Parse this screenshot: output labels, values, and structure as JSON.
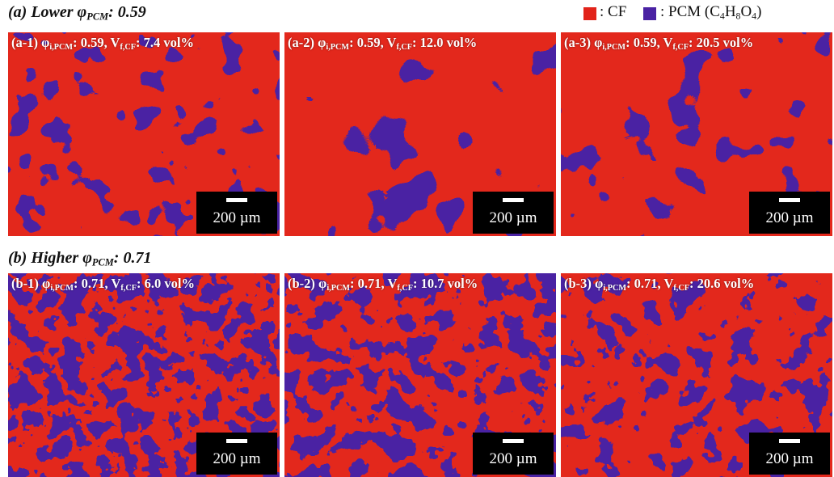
{
  "legend": [
    {
      "color": "#e2231a",
      "label": [
        ": CF"
      ]
    },
    {
      "color": "#4a22a3",
      "label": [
        ": PCM (C",
        "4",
        "H",
        "8",
        "O",
        "4",
        ")"
      ]
    }
  ],
  "sections": [
    {
      "title": [
        "(a) Lower φ",
        "PCM",
        ": 0.59"
      ],
      "panels": [
        {
          "label": [
            "(a-1) φ",
            "i,PCM",
            ": 0.59, V",
            "f,CF",
            ": 7.4 vol%"
          ],
          "scale_bar": "200 µm"
        },
        {
          "label": [
            "(a-2) φ",
            "i,PCM",
            ": 0.59, V",
            "f,CF",
            ": 12.0 vol%"
          ],
          "scale_bar": "200 µm"
        },
        {
          "label": [
            "(a-3) φ",
            "i,PCM",
            ": 0.59, V",
            "f,CF",
            ": 20.5 vol%"
          ],
          "scale_bar": "200 µm"
        }
      ]
    },
    {
      "title": [
        "(b) Higher φ",
        "PCM",
        ": 0.71"
      ],
      "panels": [
        {
          "label": [
            "(b-1) φ",
            "i,PCM",
            ": 0.71, V",
            "f,CF",
            ": 6.0 vol%"
          ],
          "scale_bar": "200 µm"
        },
        {
          "label": [
            "(b-2) φ",
            "i,PCM",
            ": 0.71, V",
            "f,CF",
            ": 10.7 vol%"
          ],
          "scale_bar": "200 µm"
        },
        {
          "label": [
            "(b-3) φ",
            "i,PCM",
            ": 0.71, V",
            "f,CF",
            ": 20.6 vol%"
          ],
          "scale_bar": "200 µm"
        }
      ]
    }
  ]
}
